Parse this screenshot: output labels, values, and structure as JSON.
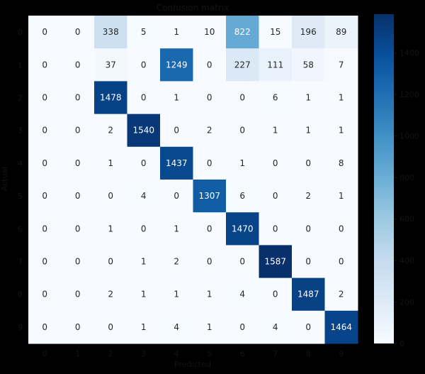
{
  "chart_data": {
    "type": "heatmap",
    "title": "Confusion matrix",
    "xlabel": "Predicted",
    "ylabel": "Actual",
    "x_categories": [
      "0",
      "1",
      "2",
      "3",
      "4",
      "5",
      "6",
      "7",
      "8",
      "9"
    ],
    "y_categories": [
      "0",
      "1",
      "2",
      "3",
      "4",
      "5",
      "6",
      "7",
      "8",
      "9"
    ],
    "values": [
      [
        0,
        0,
        338,
        5,
        1,
        10,
        822,
        15,
        196,
        89
      ],
      [
        0,
        0,
        37,
        0,
        1249,
        0,
        227,
        111,
        58,
        7
      ],
      [
        0,
        0,
        1478,
        0,
        1,
        0,
        0,
        6,
        1,
        1
      ],
      [
        0,
        0,
        2,
        1540,
        0,
        2,
        0,
        1,
        1,
        1
      ],
      [
        0,
        0,
        1,
        0,
        1437,
        0,
        1,
        0,
        0,
        8
      ],
      [
        0,
        0,
        0,
        4,
        0,
        1307,
        6,
        0,
        2,
        1
      ],
      [
        0,
        0,
        1,
        0,
        1,
        0,
        1470,
        0,
        0,
        0
      ],
      [
        0,
        0,
        0,
        1,
        2,
        0,
        0,
        1587,
        0,
        0
      ],
      [
        0,
        0,
        2,
        1,
        1,
        1,
        4,
        0,
        1487,
        2
      ],
      [
        0,
        0,
        0,
        1,
        4,
        1,
        0,
        4,
        0,
        1464
      ]
    ],
    "colormap": "Blues",
    "low_color": "#f7fbff",
    "high_color": "#08306b",
    "vmin": 0,
    "vmax": 1587,
    "colorbar_ticks": [
      0,
      200,
      400,
      600,
      800,
      1000,
      1200,
      1400
    ]
  }
}
